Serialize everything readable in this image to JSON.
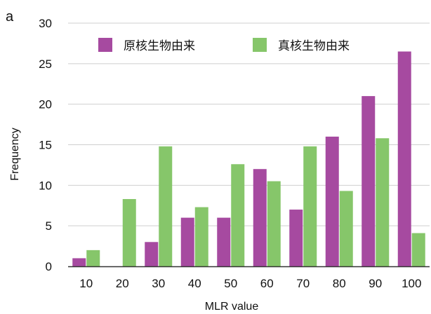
{
  "panel_label": "a",
  "chart_data": {
    "type": "bar",
    "categories": [
      "10",
      "20",
      "30",
      "40",
      "50",
      "60",
      "70",
      "80",
      "90",
      "100"
    ],
    "series": [
      {
        "name": "原核生物由来",
        "color": "#a64aa0",
        "values": [
          1,
          0,
          3,
          6,
          6,
          12,
          7,
          16,
          21,
          26.5
        ]
      },
      {
        "name": "真核生物由来",
        "color": "#86c66a",
        "values": [
          2,
          8.3,
          14.8,
          7.3,
          12.6,
          10.5,
          14.8,
          9.3,
          15.8,
          4.1
        ]
      }
    ],
    "xlabel": "MLR value",
    "ylabel": "Frequency",
    "ylim": [
      0,
      30
    ],
    "yticks": [
      0,
      5,
      10,
      15,
      20,
      25,
      30
    ],
    "grid": true,
    "legend_position": "top"
  }
}
